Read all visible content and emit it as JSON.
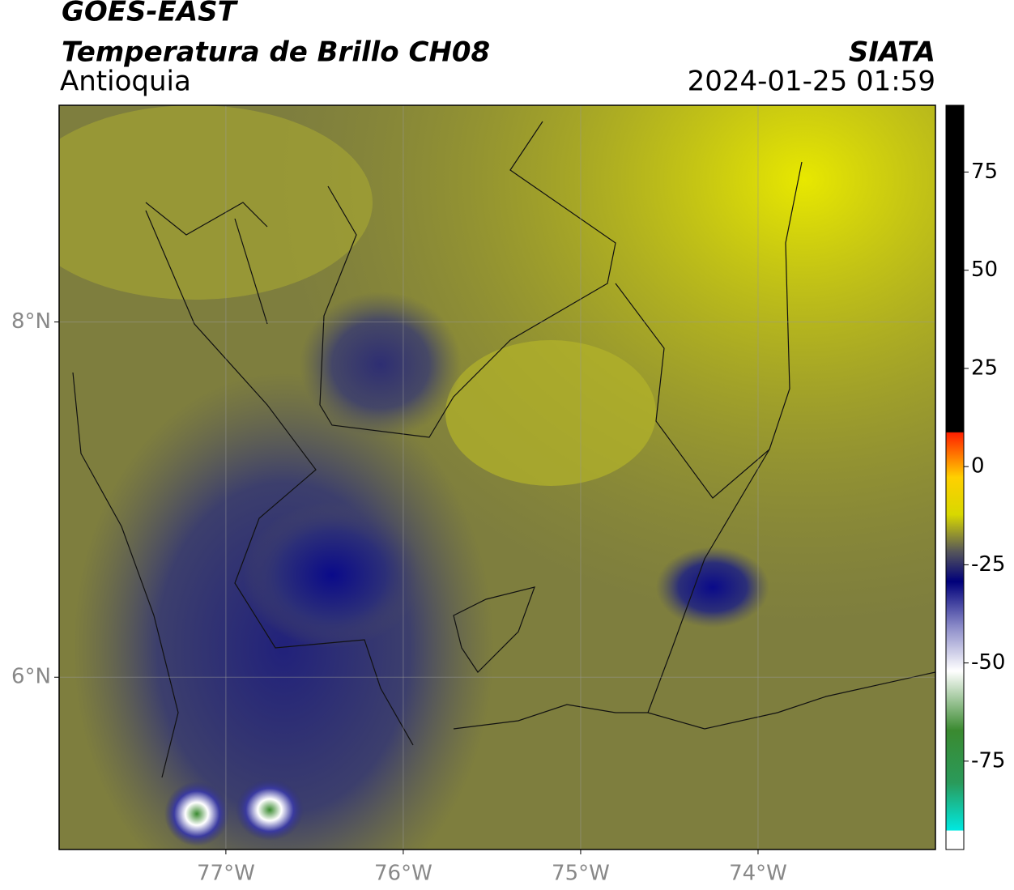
{
  "header": {
    "title": "GOES-EAST",
    "subtitle": "Temperatura de Brillo CH08",
    "region": "Antioquia",
    "source": "SIATA",
    "datetime": "2024-01-25 01:59"
  },
  "map": {
    "xlim": [
      -77.94,
      -73.0
    ],
    "ylim": [
      5.03,
      9.22
    ],
    "xticks": [
      {
        "value": -77,
        "label": "77°W"
      },
      {
        "value": -76,
        "label": "76°W"
      },
      {
        "value": -75,
        "label": "75°W"
      },
      {
        "value": -74,
        "label": "74°W"
      }
    ],
    "yticks": [
      {
        "value": 8,
        "label": "8°N"
      },
      {
        "value": 6,
        "label": "6°N"
      }
    ],
    "grid": true
  },
  "colorbar": {
    "lim": [
      -97.5,
      92
    ],
    "ticks": [
      75,
      50,
      25,
      0,
      -25,
      -50,
      -75
    ]
  }
}
